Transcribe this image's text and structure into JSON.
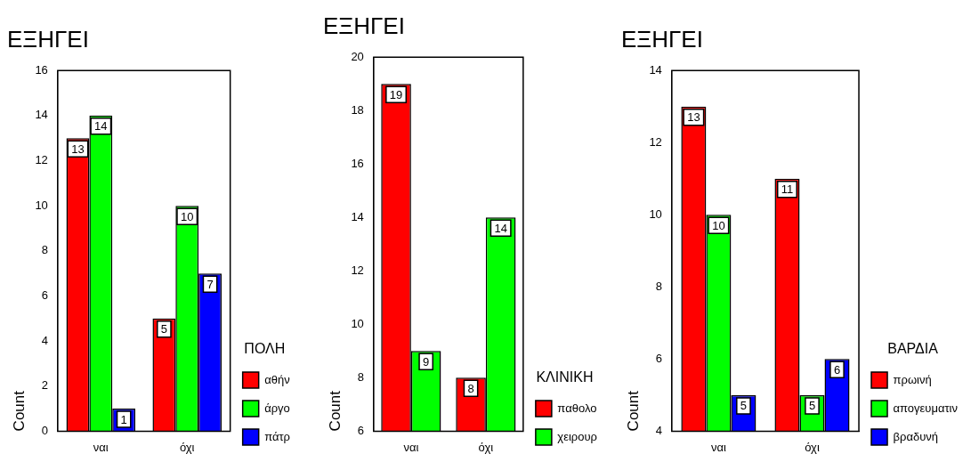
{
  "chart_data": [
    {
      "type": "bar",
      "title": "ΕΞΗΓΕΙ",
      "ylabel": "Count",
      "legend_title": "ΠΟΛΗ",
      "categories": [
        "ναι",
        "όχι"
      ],
      "series": [
        {
          "name": "αθήν",
          "color": "#ff0000",
          "values": [
            13,
            5
          ]
        },
        {
          "name": "άργο",
          "color": "#00ff00",
          "values": [
            14,
            10
          ]
        },
        {
          "name": "πάτρ",
          "color": "#0000ff",
          "values": [
            1,
            7
          ]
        }
      ],
      "ylim": [
        0,
        16
      ],
      "yticks": [
        0,
        2,
        4,
        6,
        8,
        10,
        12,
        14,
        16
      ],
      "grid": false,
      "legend": "right",
      "data_labels": true
    },
    {
      "type": "bar",
      "title": "ΕΞΗΓΕΙ",
      "ylabel": "Count",
      "legend_title": "ΚΛΙΝΙΚΗ",
      "categories": [
        "ναι",
        "όχι"
      ],
      "series": [
        {
          "name": "παθολο",
          "color": "#ff0000",
          "values": [
            19,
            8
          ]
        },
        {
          "name": "χειρουρ",
          "color": "#00ff00",
          "values": [
            9,
            14
          ]
        }
      ],
      "ylim": [
        6,
        20
      ],
      "yticks": [
        6,
        8,
        10,
        12,
        14,
        16,
        18,
        20
      ],
      "grid": false,
      "legend": "right",
      "data_labels": true
    },
    {
      "type": "bar",
      "title": "ΕΞΗΓΕΙ",
      "ylabel": "Count",
      "legend_title": "ΒΑΡΔΙΑ",
      "categories": [
        "ναι",
        "όχι"
      ],
      "series": [
        {
          "name": "πρωινή",
          "color": "#ff0000",
          "values": [
            13,
            11
          ]
        },
        {
          "name": "απογευματιν",
          "color": "#00ff00",
          "values": [
            10,
            5
          ]
        },
        {
          "name": "βραδυνή",
          "color": "#0000ff",
          "values": [
            5,
            6
          ]
        }
      ],
      "ylim": [
        4,
        14
      ],
      "yticks": [
        4,
        6,
        8,
        10,
        12,
        14
      ],
      "grid": false,
      "legend": "right",
      "data_labels": true
    }
  ]
}
